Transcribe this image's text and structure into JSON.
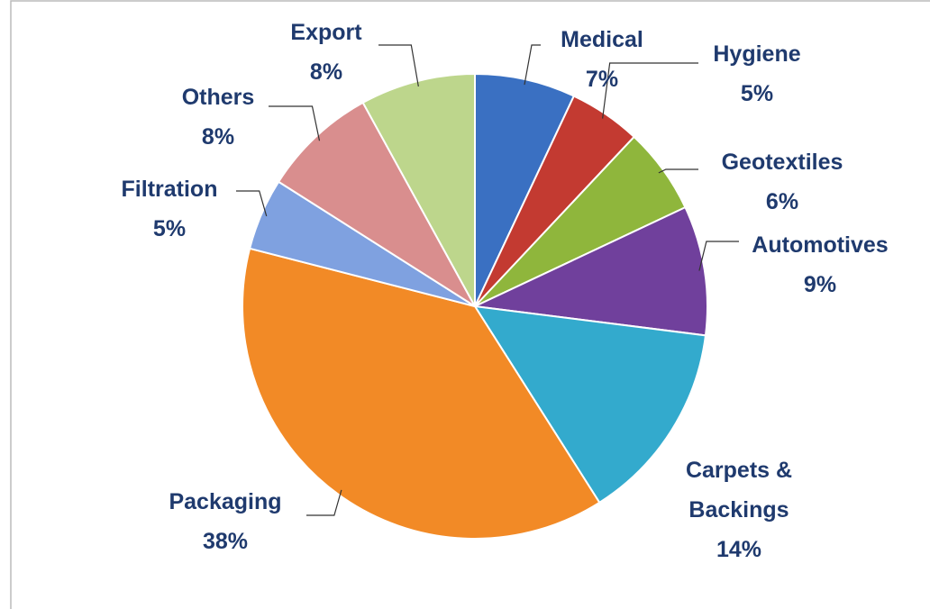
{
  "chart_data": {
    "type": "pie",
    "categories": [
      "Medical",
      "Hygiene",
      "Geotextiles",
      "Automotives",
      "Carpets & Backings",
      "Packaging",
      "Filtration",
      "Others",
      "Export"
    ],
    "values": [
      7,
      5,
      6,
      9,
      14,
      38,
      5,
      8,
      8
    ],
    "value_labels": [
      "7%",
      "5%",
      "6%",
      "9%",
      "14%",
      "38%",
      "5%",
      "8%",
      "8%"
    ],
    "colors": [
      "#3a70c2",
      "#c33a31",
      "#8fb63c",
      "#70409c",
      "#33aacd",
      "#f28a26",
      "#7fa1e0",
      "#d98e8e",
      "#bdd68c"
    ]
  }
}
